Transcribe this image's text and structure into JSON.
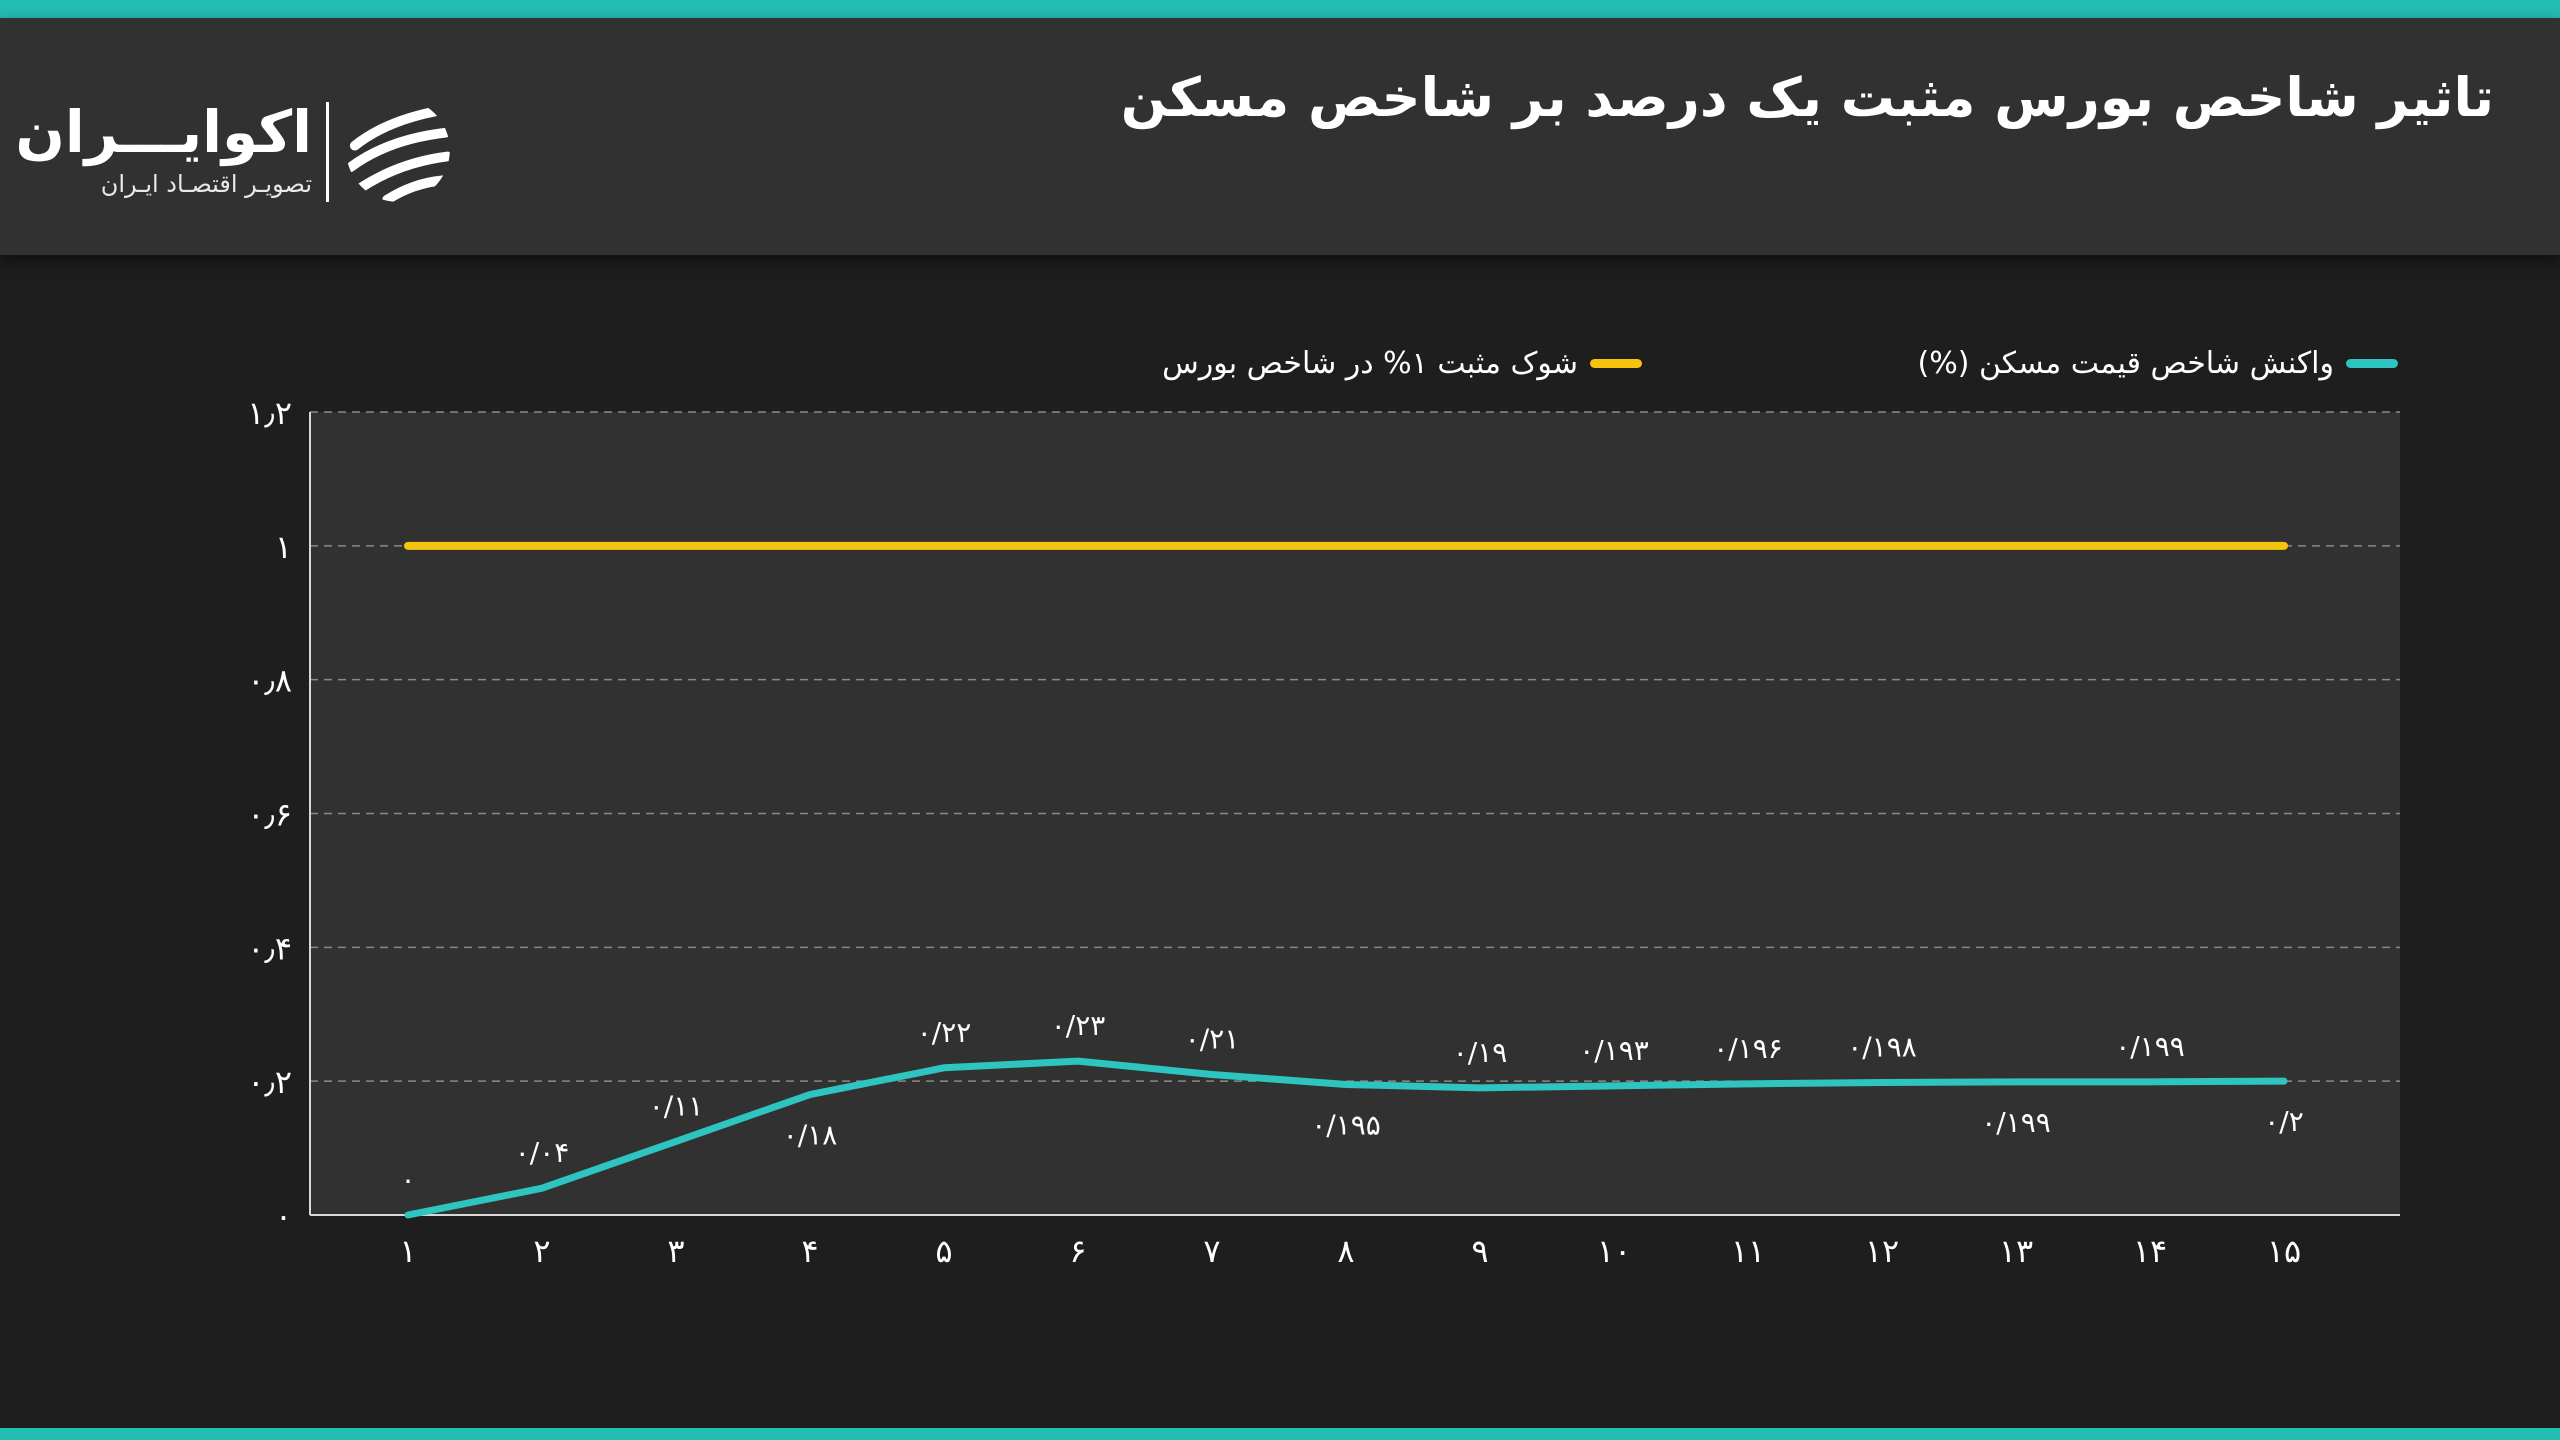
{
  "header": {
    "title": "تاثیر شاخص بورس مثبت یک درصد بر شاخص مسکن",
    "logo": {
      "name": "اکوایـــران",
      "tagline": "تصویـر اقتصـاد ایـران"
    }
  },
  "colors": {
    "accent": "#22bdb3",
    "shock_line": "#f5c40f",
    "response_line": "#2ec4bf",
    "plot_background": "#323132",
    "page_background": "#1f1e1f"
  },
  "legend": {
    "response_label": "واکنش شاخص قیمت مسکن (%)",
    "shock_label": "شوک مثبت ۱% در شاخص بورس"
  },
  "chart_data": {
    "type": "line",
    "title": "تاثیر شاخص بورس مثبت یک درصد بر شاخص مسکن",
    "xlabel": "",
    "ylabel": "",
    "x": [
      1,
      2,
      3,
      4,
      5,
      6,
      7,
      8,
      9,
      10,
      11,
      12,
      13,
      14,
      15
    ],
    "x_tick_labels": [
      "۱",
      "۲",
      "۳",
      "۴",
      "۵",
      "۶",
      "۷",
      "۸",
      "۹",
      "۱۰",
      "۱۱",
      "۱۲",
      "۱۳",
      "۱۴",
      "۱۵"
    ],
    "ylim": [
      0,
      1.2
    ],
    "y_ticks": [
      0,
      0.2,
      0.4,
      0.6,
      0.8,
      1,
      1.2
    ],
    "y_tick_labels": [
      "۰",
      "۰٫۲",
      "۰٫۴",
      "۰٫۶",
      "۰٫۸",
      "۱",
      "۱٫۲"
    ],
    "grid": true,
    "legend_position": "top",
    "series": [
      {
        "name": "واکنش شاخص قیمت مسکن (%)",
        "color": "#2ec4bf",
        "values": [
          0,
          0.04,
          0.11,
          0.18,
          0.22,
          0.23,
          0.21,
          0.195,
          0.19,
          0.193,
          0.196,
          0.198,
          0.199,
          0.199,
          0.2
        ],
        "data_labels": [
          "۰",
          "۰/۰۴",
          "۰/۱۱",
          "۰/۱۸",
          "۰/۲۲",
          "۰/۲۳",
          "۰/۲۱",
          "۰/۱۹۵",
          "۰/۱۹",
          "۰/۱۹۳",
          "۰/۱۹۶",
          "۰/۱۹۸",
          "۰/۱۹۹",
          "۰/۱۹۹",
          "۰/۲"
        ],
        "label_side": [
          "above",
          "above",
          "above",
          "below",
          "above",
          "above",
          "above",
          "below",
          "above",
          "above",
          "above",
          "above",
          "below",
          "above",
          "below"
        ]
      },
      {
        "name": "شوک مثبت ۱% در شاخص بورس",
        "color": "#f5c40f",
        "values": [
          1,
          1,
          1,
          1,
          1,
          1,
          1,
          1,
          1,
          1,
          1,
          1,
          1,
          1,
          1
        ]
      }
    ]
  }
}
